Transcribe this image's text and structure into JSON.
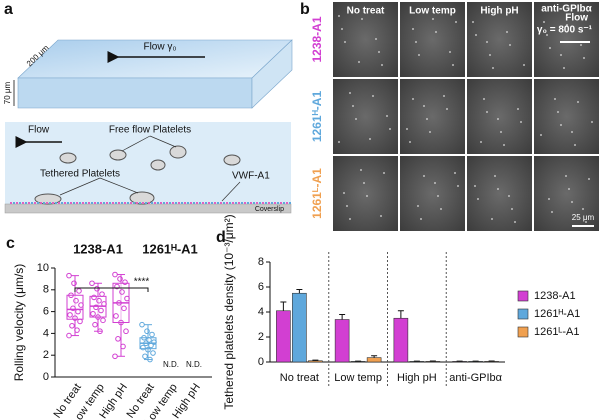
{
  "panel_a": {
    "label": "a",
    "flow_top": "Flow γ₀",
    "width": "200 μm",
    "height": "70 μm",
    "flow": "Flow",
    "free": "Free flow Platelets",
    "tethered": "Tethered Platelets",
    "vwf": "VWF-A1",
    "coverslip": "Coverslip"
  },
  "panel_b": {
    "label": "b",
    "columns": [
      "No treat",
      "Low temp",
      "High pH",
      "anti-GPIbα"
    ],
    "rows": [
      "1238-A1",
      "1261ᴴ-A1",
      "1261ᴸ-A1"
    ],
    "row_colors": [
      "#d23fd2",
      "#5fa8dc",
      "#f0a050"
    ],
    "flow_note": [
      "Flow",
      "γ₀ = 800 s⁻¹"
    ],
    "scale_bar": "25 μm"
  },
  "chart_data": [
    {
      "type": "box",
      "label": "c",
      "y_label": "Rolling velocity (μm/s)",
      "categories": [
        "No treat",
        "Low temp",
        "High pH",
        "No treat",
        "Low temp",
        "High pH"
      ],
      "ylim": [
        0,
        10
      ],
      "yticks": [
        0,
        2,
        4,
        6,
        8,
        10
      ],
      "significance": "****",
      "missing_label": "N.D.",
      "series": [
        {
          "name": "1238-A1",
          "color": "#d23fd2",
          "boxes": [
            {
              "min": 3.8,
              "q1": 5.3,
              "median": 6.2,
              "q3": 7.5,
              "max": 9.3,
              "points": [
                9.3,
                8.6,
                7.9,
                7.5,
                7.0,
                6.6,
                6.3,
                6.0,
                5.7,
                5.4,
                5.1,
                4.7,
                4.3,
                3.8
              ]
            },
            {
              "min": 4.2,
              "q1": 5.5,
              "median": 6.5,
              "q3": 7.4,
              "max": 8.6,
              "points": [
                8.6,
                8.1,
                7.6,
                7.3,
                7.0,
                6.7,
                6.4,
                6.1,
                5.8,
                5.5,
                5.2,
                4.8,
                4.2
              ]
            },
            {
              "min": 1.9,
              "q1": 5.0,
              "median": 6.8,
              "q3": 8.6,
              "max": 9.4,
              "points": [
                9.4,
                9.0,
                8.7,
                8.3,
                7.8,
                7.2,
                6.8,
                6.3,
                5.6,
                5.0,
                4.2,
                3.5,
                2.8,
                1.9
              ]
            },
            null,
            null,
            null
          ]
        },
        {
          "name": "1261ᴴ-A1",
          "color": "#5fa8dc",
          "boxes": [
            null,
            null,
            null,
            {
              "min": 1.6,
              "q1": 2.6,
              "median": 3.1,
              "q3": 3.6,
              "max": 4.8,
              "points": [
                4.8,
                4.2,
                3.9,
                3.6,
                3.4,
                3.2,
                3.1,
                2.9,
                2.7,
                2.5,
                2.2,
                1.9,
                1.6
              ]
            },
            null,
            null
          ]
        }
      ]
    },
    {
      "type": "bar",
      "label": "d",
      "y_label": "Tethered platelets density (10⁻³/μm²)",
      "categories": [
        "No treat",
        "Low temp",
        "High pH",
        "anti-GPIbα"
      ],
      "ylim": [
        0,
        8
      ],
      "yticks": [
        0,
        2,
        4,
        6,
        8
      ],
      "series": [
        {
          "name": "1238-A1",
          "color": "#d23fd2",
          "values": [
            4.1,
            3.4,
            3.5,
            0.05
          ],
          "errors": [
            0.7,
            0.4,
            0.6,
            0.02
          ]
        },
        {
          "name": "1261ᴴ-A1",
          "color": "#5fa8dc",
          "values": [
            5.5,
            0.05,
            0.05,
            0.05
          ],
          "errors": [
            0.3,
            0.02,
            0.02,
            0.02
          ]
        },
        {
          "name": "1261ᴸ-A1",
          "color": "#f0a050",
          "values": [
            0.1,
            0.35,
            0.05,
            0.05
          ],
          "errors": [
            0.05,
            0.15,
            0.03,
            0.03
          ]
        }
      ]
    }
  ]
}
